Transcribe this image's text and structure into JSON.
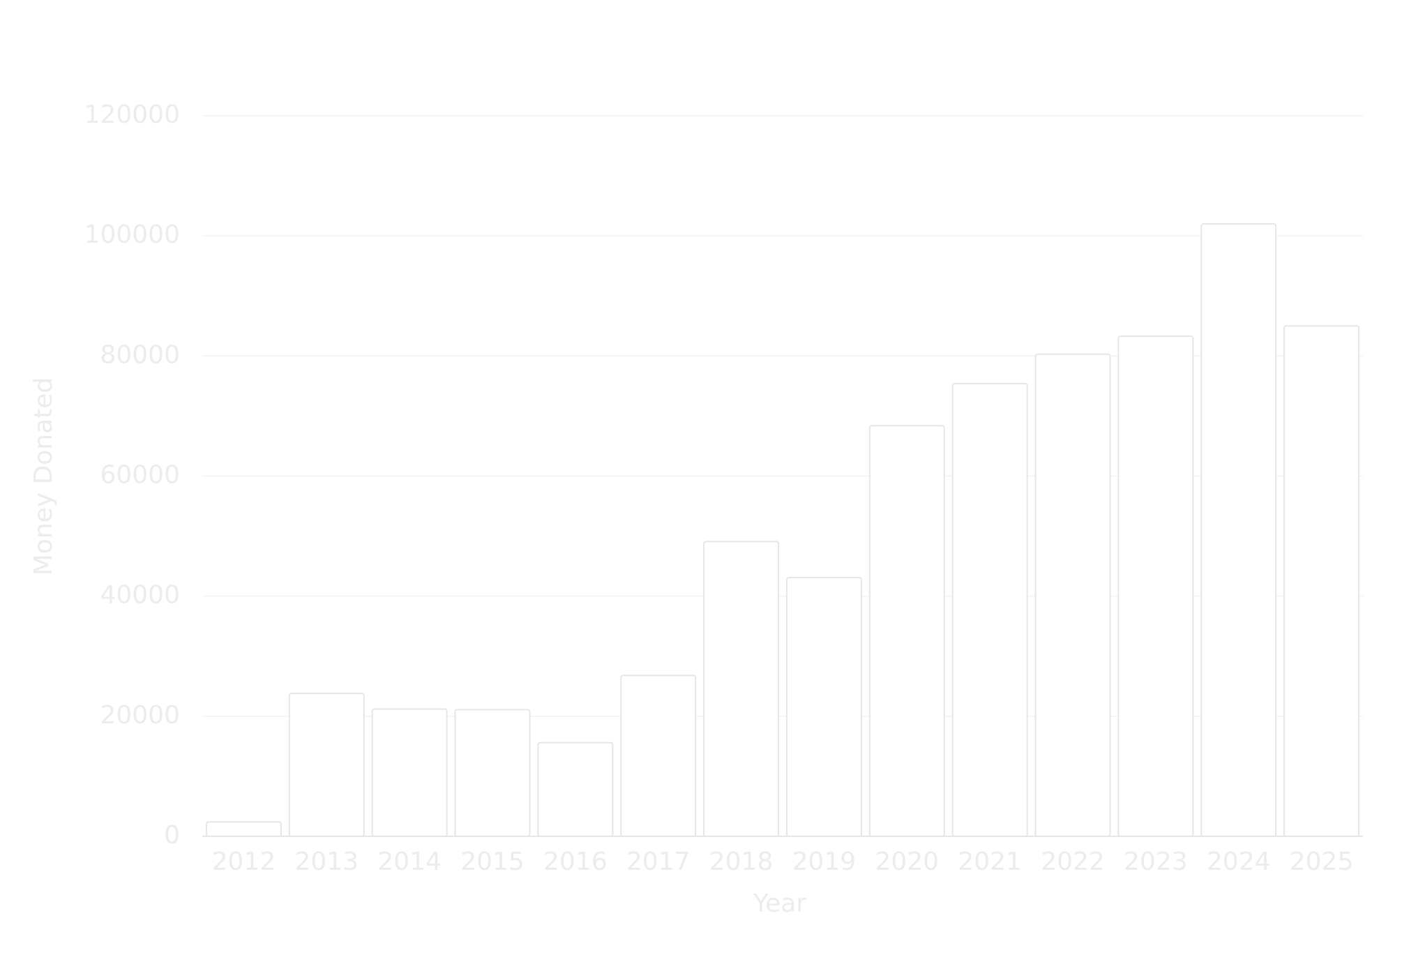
{
  "chart_data": {
    "type": "bar",
    "x_label": "Year",
    "y_label": "Money Donated",
    "categories": [
      "2012",
      "2013",
      "2014",
      "2015",
      "2016",
      "2017",
      "2018",
      "2019",
      "2020",
      "2021",
      "2022",
      "2023",
      "2024",
      "2025"
    ],
    "values": [
      2400,
      23800,
      21200,
      21100,
      15600,
      26800,
      49100,
      43100,
      68400,
      75400,
      80300,
      83300,
      102000,
      85000
    ],
    "color": "#ffffff",
    "ylim": [
      0,
      120000
    ],
    "yticks": [
      0,
      20000,
      40000,
      60000,
      80000,
      100000,
      120000
    ],
    "grid": true
  }
}
